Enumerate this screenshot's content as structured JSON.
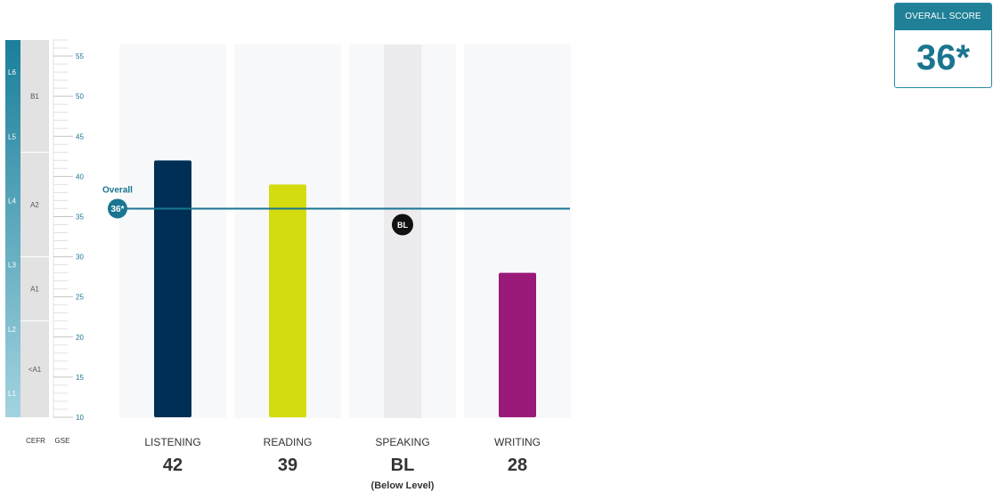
{
  "overall_card": {
    "header": "OVERALL SCORE",
    "value": "36*"
  },
  "chart_data": {
    "type": "bar",
    "categories": [
      "LISTENING",
      "READING",
      "SPEAKING",
      "WRITING"
    ],
    "values": [
      42,
      39,
      null,
      28
    ],
    "score_labels": [
      "42",
      "39",
      "BL",
      "28"
    ],
    "bar_colors": [
      "#002f55",
      "#d4dc10",
      null,
      "#9a1a79"
    ],
    "speaking": {
      "marker": "BL",
      "marker_value": 34,
      "sub_label": "(Below Level)"
    },
    "overall": {
      "label": "Overall",
      "badge": "36*",
      "value": 36,
      "color": "#1a7590"
    },
    "ylim": [
      10,
      57
    ],
    "gse_ticks": [
      10,
      15,
      20,
      25,
      30,
      35,
      40,
      45,
      50,
      55
    ],
    "cefr_bands": [
      {
        "label": "<A1",
        "from": 10,
        "to": 22
      },
      {
        "label": "A1",
        "from": 22,
        "to": 30
      },
      {
        "label": "A2",
        "from": 30,
        "to": 43
      },
      {
        "label": "B1",
        "from": 43,
        "to": 57
      }
    ],
    "levels": [
      {
        "label": "L1",
        "value": 13
      },
      {
        "label": "L2",
        "value": 21
      },
      {
        "label": "L3",
        "value": 29
      },
      {
        "label": "L4",
        "value": 37
      },
      {
        "label": "L5",
        "value": 45
      },
      {
        "label": "L6",
        "value": 53
      }
    ],
    "axis_labels": {
      "cefr": "CEFR",
      "gse": "GSE"
    },
    "colors": {
      "axis_text": "#1a7590",
      "panel": "#f7f8fa",
      "speaking_band": "#ececee",
      "level_dark": "#1a7f9a",
      "level_light": "#a3d3e0"
    }
  }
}
